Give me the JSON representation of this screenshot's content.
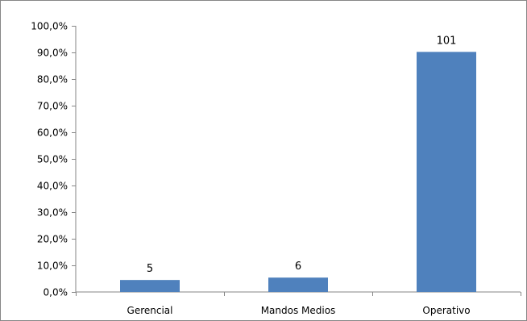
{
  "chart_data": {
    "type": "bar",
    "categories": [
      "Gerencial",
      "Mandos Medios",
      "Operativo"
    ],
    "values": [
      4.5,
      5.4,
      90.2
    ],
    "data_labels": [
      "5",
      "6",
      "101"
    ],
    "y_ticks": [
      "0,0%",
      "10,0%",
      "20,0%",
      "30,0%",
      "40,0%",
      "50,0%",
      "60,0%",
      "70,0%",
      "80,0%",
      "90,0%",
      "100,0%"
    ],
    "ylim": [
      0,
      100
    ],
    "grid": false,
    "legend": "none",
    "title": "",
    "xlabel": "",
    "ylabel": "",
    "bar_color": "#4F81BD",
    "axis_color": "#868686"
  }
}
